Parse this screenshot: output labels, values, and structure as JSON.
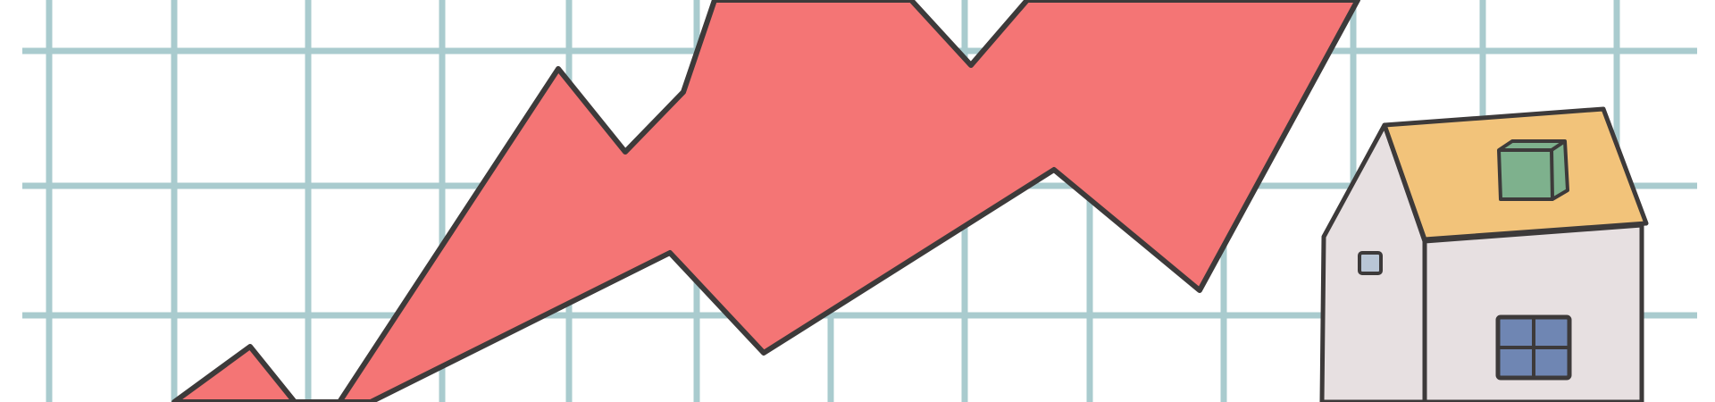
{
  "illustration": {
    "subject": "rising-zigzag-arrow-with-house",
    "colors": {
      "background": "#ffffff",
      "grid": "#a9cbce",
      "arrow_fill": "#f47575",
      "outline": "#3d3a3a",
      "roof": "#f2c37a",
      "wall": "#e7e0e1",
      "chimney": "#7eb18d",
      "window": "#6f86b3",
      "small_window": "#b9c6d6"
    },
    "icons": [
      "arrow-icon",
      "house-icon",
      "chimney-icon",
      "window-icon"
    ]
  }
}
